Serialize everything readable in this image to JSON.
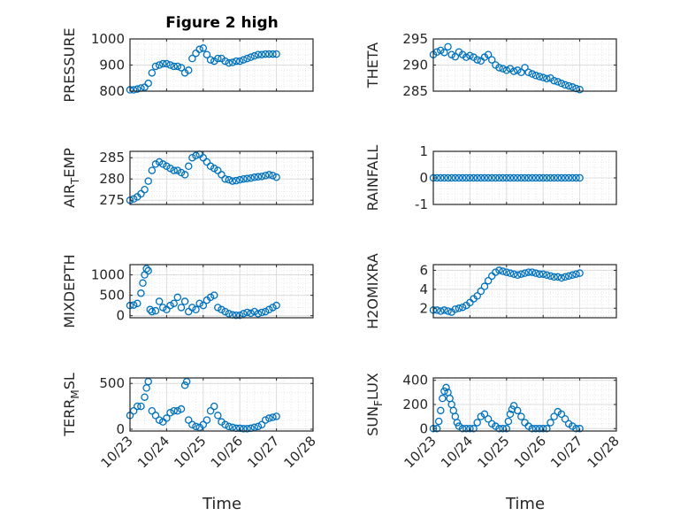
{
  "figure": {
    "title": "Figure 2 high",
    "marker_color": "#0072BD"
  },
  "x_axis": {
    "label": "Time",
    "ticks": [
      "10/23",
      "10/24",
      "10/25",
      "10/26",
      "10/27",
      "10/28"
    ],
    "lim": [
      23,
      28
    ]
  },
  "chart_data": [
    {
      "type": "scatter",
      "ylabel_parts": [
        "PRESSURE"
      ],
      "ylim": [
        800,
        1000
      ],
      "yticks": [
        "800",
        "900",
        "1000"
      ],
      "grid": true,
      "x": [
        23.0,
        23.1,
        23.2,
        23.3,
        23.4,
        23.5,
        23.6,
        23.7,
        23.8,
        23.9,
        24.0,
        24.1,
        24.2,
        24.3,
        24.4,
        24.5,
        24.6,
        24.7,
        24.8,
        24.9,
        25.0,
        25.1,
        25.2,
        25.3,
        25.4,
        25.5,
        25.6,
        25.7,
        25.8,
        25.9,
        26.0,
        26.1,
        26.2,
        26.3,
        26.4,
        26.5,
        26.6,
        26.7,
        26.8,
        26.9,
        27.0
      ],
      "y": [
        805,
        805,
        808,
        812,
        815,
        830,
        870,
        895,
        900,
        905,
        905,
        900,
        895,
        895,
        890,
        870,
        880,
        925,
        945,
        960,
        965,
        940,
        920,
        915,
        925,
        925,
        915,
        908,
        910,
        915,
        915,
        920,
        925,
        930,
        935,
        940,
        940,
        942,
        942,
        942,
        942
      ]
    },
    {
      "type": "scatter",
      "ylabel_parts": [
        "THETA"
      ],
      "ylim": [
        285,
        295
      ],
      "yticks": [
        "285",
        "290",
        "295"
      ],
      "grid": true,
      "x": [
        23.0,
        23.1,
        23.2,
        23.3,
        23.4,
        23.5,
        23.6,
        23.7,
        23.8,
        23.9,
        24.0,
        24.1,
        24.2,
        24.3,
        24.4,
        24.5,
        24.6,
        24.7,
        24.8,
        24.9,
        25.0,
        25.1,
        25.2,
        25.3,
        25.4,
        25.5,
        25.6,
        25.7,
        25.8,
        25.9,
        26.0,
        26.1,
        26.2,
        26.3,
        26.4,
        26.5,
        26.6,
        26.7,
        26.8,
        26.9,
        27.0
      ],
      "y": [
        292,
        292.5,
        292.8,
        292.4,
        293.5,
        292.0,
        291.6,
        292.5,
        292.0,
        291.5,
        291.8,
        291.5,
        291.0,
        290.8,
        291.5,
        292.0,
        291.0,
        290.0,
        289.5,
        289.3,
        289.0,
        289.3,
        288.8,
        289.0,
        288.6,
        289.5,
        288.6,
        288.3,
        288.0,
        287.8,
        287.6,
        287.4,
        287.5,
        287.0,
        286.8,
        286.5,
        286.2,
        286.0,
        285.8,
        285.5,
        285.3
      ]
    },
    {
      "type": "scatter",
      "ylabel_parts": [
        "AIR",
        "T",
        "EMP"
      ],
      "ylim": [
        274,
        286.5
      ],
      "yticks": [
        "275",
        "280",
        "285"
      ],
      "grid": true,
      "x": [
        23.0,
        23.1,
        23.2,
        23.3,
        23.4,
        23.5,
        23.6,
        23.7,
        23.8,
        23.9,
        24.0,
        24.1,
        24.2,
        24.3,
        24.4,
        24.5,
        24.6,
        24.7,
        24.8,
        24.9,
        25.0,
        25.1,
        25.2,
        25.3,
        25.4,
        25.5,
        25.6,
        25.7,
        25.8,
        25.9,
        26.0,
        26.1,
        26.2,
        26.3,
        26.4,
        26.5,
        26.6,
        26.7,
        26.8,
        26.9,
        27.0
      ],
      "y": [
        275.0,
        275.3,
        275.8,
        276.5,
        277.5,
        279.5,
        282.0,
        283.5,
        284.0,
        283.5,
        283.0,
        282.5,
        282.0,
        282.0,
        281.5,
        281.0,
        283.0,
        285.0,
        285.5,
        285.8,
        285.0,
        284.0,
        283.0,
        282.5,
        282.0,
        281.0,
        280.0,
        279.8,
        279.5,
        279.6,
        279.8,
        280.0,
        280.1,
        280.2,
        280.4,
        280.5,
        280.6,
        280.8,
        281.0,
        280.8,
        280.4
      ]
    },
    {
      "type": "scatter",
      "ylabel_parts": [
        "RAINFALL"
      ],
      "ylim": [
        -1,
        1
      ],
      "yticks": [
        "-1",
        "0",
        "1"
      ],
      "grid": true,
      "x": [
        23.0,
        23.1,
        23.2,
        23.3,
        23.4,
        23.5,
        23.6,
        23.7,
        23.8,
        23.9,
        24.0,
        24.1,
        24.2,
        24.3,
        24.4,
        24.5,
        24.6,
        24.7,
        24.8,
        24.9,
        25.0,
        25.1,
        25.2,
        25.3,
        25.4,
        25.5,
        25.6,
        25.7,
        25.8,
        25.9,
        26.0,
        26.1,
        26.2,
        26.3,
        26.4,
        26.5,
        26.6,
        26.7,
        26.8,
        26.9,
        27.0
      ],
      "y": [
        0,
        0,
        0,
        0,
        0,
        0,
        0,
        0,
        0,
        0,
        0,
        0,
        0,
        0,
        0,
        0,
        0,
        0,
        0,
        0,
        0,
        0,
        0,
        0,
        0,
        0,
        0,
        0,
        0,
        0,
        0,
        0,
        0,
        0,
        0,
        0,
        0,
        0,
        0,
        0,
        0
      ]
    },
    {
      "type": "scatter",
      "ylabel_parts": [
        "MIXDEPTH"
      ],
      "ylim": [
        -50,
        1250
      ],
      "yticks": [
        "0",
        "500",
        "1000"
      ],
      "grid": true,
      "x": [
        23.0,
        23.1,
        23.2,
        23.3,
        23.35,
        23.4,
        23.45,
        23.5,
        23.55,
        23.6,
        23.7,
        23.8,
        23.9,
        24.0,
        24.1,
        24.2,
        24.3,
        24.4,
        24.5,
        24.6,
        24.7,
        24.8,
        24.9,
        25.0,
        25.1,
        25.2,
        25.3,
        25.4,
        25.5,
        25.6,
        25.7,
        25.8,
        25.9,
        26.0,
        26.1,
        26.2,
        26.3,
        26.4,
        26.5,
        26.6,
        26.7,
        26.8,
        26.9,
        27.0
      ],
      "y": [
        250,
        260,
        300,
        550,
        800,
        1000,
        1150,
        1100,
        150,
        100,
        120,
        350,
        200,
        150,
        250,
        300,
        450,
        200,
        350,
        100,
        200,
        150,
        300,
        250,
        380,
        450,
        500,
        200,
        150,
        100,
        50,
        20,
        10,
        10,
        50,
        80,
        60,
        100,
        50,
        80,
        100,
        150,
        200,
        250
      ]
    },
    {
      "type": "scatter",
      "ylabel_parts": [
        "H2OMIXRA"
      ],
      "ylim": [
        1,
        6.6
      ],
      "yticks": [
        "2",
        "4",
        "6"
      ],
      "grid": true,
      "x": [
        23.0,
        23.1,
        23.2,
        23.3,
        23.4,
        23.5,
        23.6,
        23.7,
        23.8,
        23.9,
        24.0,
        24.1,
        24.2,
        24.3,
        24.4,
        24.5,
        24.6,
        24.7,
        24.8,
        24.9,
        25.0,
        25.1,
        25.2,
        25.3,
        25.4,
        25.5,
        25.6,
        25.7,
        25.8,
        25.9,
        26.0,
        26.1,
        26.2,
        26.3,
        26.4,
        26.5,
        26.6,
        26.7,
        26.8,
        26.9,
        27.0
      ],
      "y": [
        1.8,
        1.8,
        1.7,
        1.8,
        1.7,
        1.6,
        1.9,
        2.0,
        2.1,
        2.3,
        2.6,
        3.0,
        3.3,
        3.8,
        4.3,
        4.9,
        5.4,
        5.8,
        6.0,
        5.9,
        5.8,
        5.7,
        5.6,
        5.5,
        5.6,
        5.7,
        5.8,
        5.8,
        5.7,
        5.6,
        5.6,
        5.5,
        5.4,
        5.3,
        5.3,
        5.2,
        5.3,
        5.4,
        5.5,
        5.6,
        5.7
      ]
    },
    {
      "type": "scatter",
      "ylabel_parts": [
        "TERR",
        "M",
        "SL"
      ],
      "ylim": [
        -20,
        560
      ],
      "yticks": [
        "0",
        "500"
      ],
      "grid": true,
      "x": [
        23.0,
        23.1,
        23.2,
        23.3,
        23.4,
        23.45,
        23.5,
        23.6,
        23.7,
        23.8,
        23.9,
        24.0,
        24.1,
        24.2,
        24.3,
        24.4,
        24.5,
        24.55,
        24.6,
        24.7,
        24.8,
        24.9,
        25.0,
        25.1,
        25.2,
        25.3,
        25.4,
        25.5,
        25.6,
        25.7,
        25.8,
        25.9,
        26.0,
        26.1,
        26.2,
        26.3,
        26.4,
        26.5,
        26.6,
        26.7,
        26.8,
        26.9,
        27.0
      ],
      "y": [
        150,
        200,
        250,
        250,
        350,
        450,
        520,
        200,
        150,
        100,
        80,
        120,
        180,
        200,
        200,
        220,
        480,
        520,
        100,
        50,
        30,
        20,
        50,
        100,
        200,
        250,
        150,
        80,
        50,
        30,
        20,
        10,
        10,
        5,
        5,
        10,
        20,
        30,
        50,
        100,
        120,
        130,
        140
      ]
    },
    {
      "type": "scatter",
      "ylabel_parts": [
        "SUN",
        "F",
        "LUX"
      ],
      "ylim": [
        -20,
        420
      ],
      "yticks": [
        "0",
        "200",
        "400"
      ],
      "grid": true,
      "x": [
        23.0,
        23.1,
        23.15,
        23.2,
        23.25,
        23.3,
        23.35,
        23.4,
        23.45,
        23.5,
        23.55,
        23.6,
        23.65,
        23.7,
        23.8,
        23.9,
        24.0,
        24.1,
        24.2,
        24.3,
        24.4,
        24.5,
        24.6,
        24.7,
        24.8,
        24.9,
        25.0,
        25.05,
        25.1,
        25.15,
        25.2,
        25.3,
        25.4,
        25.5,
        25.6,
        25.7,
        25.8,
        25.9,
        26.0,
        26.1,
        26.2,
        26.3,
        26.4,
        26.5,
        26.6,
        26.7,
        26.8,
        26.9,
        27.0
      ],
      "y": [
        0,
        0,
        60,
        150,
        250,
        310,
        340,
        300,
        250,
        200,
        150,
        100,
        50,
        20,
        0,
        0,
        0,
        0,
        50,
        100,
        120,
        80,
        40,
        20,
        0,
        0,
        0,
        60,
        120,
        160,
        190,
        150,
        100,
        50,
        20,
        0,
        0,
        0,
        0,
        0,
        50,
        100,
        140,
        120,
        80,
        40,
        20,
        0,
        0
      ]
    }
  ]
}
